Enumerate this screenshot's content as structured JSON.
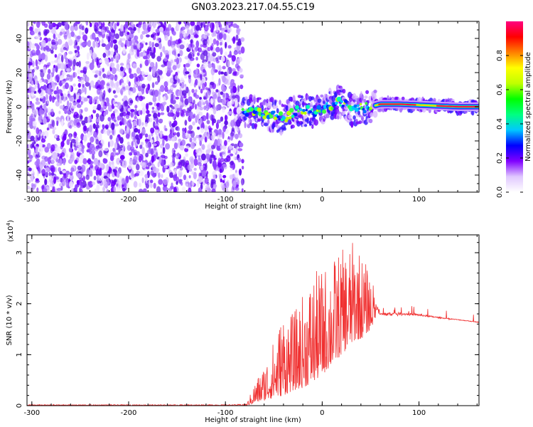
{
  "title": "GN03.2023.217.04.55.C19",
  "chart_data": [
    {
      "type": "heatmap",
      "xlabel": "Height of straight line (km)",
      "ylabel": "Frequency (Hz)",
      "xlim": [
        -305,
        162
      ],
      "ylim": [
        -50,
        50
      ],
      "xticks": [
        -300,
        -200,
        -100,
        0,
        100
      ],
      "yticks": [
        -40,
        -20,
        0,
        20,
        40
      ],
      "noise_region_x": [
        -305,
        -82
      ],
      "signal_track": {
        "x": [
          -82,
          -70,
          -60,
          -50,
          -40,
          -30,
          -20,
          -10,
          0,
          10,
          20,
          30,
          40,
          50,
          60,
          80,
          100,
          120,
          140,
          162
        ],
        "freq": [
          -4,
          -3,
          -4,
          -5,
          -7,
          -3,
          -2,
          -3,
          -1,
          1,
          3,
          -2,
          -1,
          0,
          1.5,
          1.5,
          1.0,
          0.5,
          0,
          0
        ]
      },
      "colorbar": {
        "label": "Normalized spectral amplitude",
        "range": [
          0,
          1
        ],
        "ticks": [
          0.0,
          0.2,
          0.4,
          0.6,
          0.8
        ],
        "tick_labels": [
          "0.0",
          "0.2",
          "0.4",
          "0.6",
          "0.8"
        ],
        "colors": [
          "#ffffff",
          "#e0c8ff",
          "#8000ff",
          "#0000ff",
          "#00c8ff",
          "#00ff80",
          "#00ff00",
          "#c0ff00",
          "#ffff00",
          "#ff8000",
          "#ff0000",
          "#ff0080"
        ]
      }
    },
    {
      "type": "line",
      "xlabel": "Height of straight line (km)",
      "ylabel": "SNR (10 * v/v)",
      "y_multiplier": "(x10",
      "y_multiplier_exp": "4",
      "y_multiplier_close": ")",
      "xlim": [
        -305,
        162
      ],
      "ylim": [
        0,
        3.35
      ],
      "xticks": [
        -300,
        -200,
        -100,
        0,
        100
      ],
      "yticks": [
        0,
        1,
        2,
        3
      ],
      "series": [
        {
          "color": "#f03030",
          "envelope": {
            "x": [
              -305,
              -200,
              -100,
              -78,
              -70,
              -60,
              -50,
              -40,
              -30,
              -20,
              -10,
              0,
              10,
              20,
              30,
              35,
              40,
              50,
              55,
              60,
              80,
              100,
              120,
              140,
              162
            ],
            "y_low": [
              0,
              0,
              0,
              0,
              0.05,
              0.1,
              0.15,
              0.2,
              0.3,
              0.35,
              0.45,
              0.6,
              0.8,
              1.0,
              1.2,
              1.3,
              1.3,
              1.5,
              1.7,
              1.72,
              1.75,
              1.73,
              1.7,
              1.67,
              1.62
            ],
            "y_high": [
              0.02,
              0.02,
              0.02,
              0.03,
              0.45,
              0.8,
              1.3,
              1.9,
              1.8,
              2.2,
              2.6,
              2.7,
              2.9,
              3.05,
              3.2,
              3.3,
              3.0,
              2.6,
              2.2,
              1.85,
              1.85,
              1.82,
              1.75,
              1.7,
              1.65
            ]
          }
        }
      ]
    }
  ]
}
